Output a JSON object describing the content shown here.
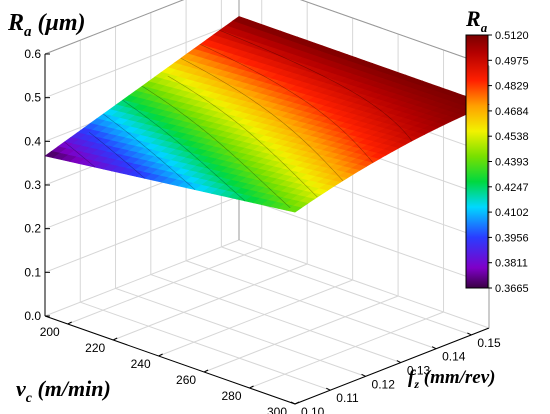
{
  "chart_data": {
    "type": "surface3d",
    "z_title": {
      "main": "R",
      "sub": "a",
      "unit": " (μm)"
    },
    "x_title": {
      "main": "v",
      "sub": "c",
      "unit": " (m/min)"
    },
    "y_title": {
      "main": "f",
      "sub": "z",
      "unit": " (mm/rev)"
    },
    "colorbar_title": {
      "main": "R",
      "sub": "a"
    },
    "x_ticks": [
      "200",
      "220",
      "240",
      "260",
      "280",
      "300"
    ],
    "y_ticks": [
      "0.10",
      "0.11",
      "0.12",
      "0.13",
      "0.14",
      "0.15"
    ],
    "z_ticks": [
      "0.0",
      "0.1",
      "0.2",
      "0.3",
      "0.4",
      "0.5",
      "0.6"
    ],
    "colorbar_ticks": [
      "0.5120",
      "0.4975",
      "0.4829",
      "0.4684",
      "0.4538",
      "0.4393",
      "0.4247",
      "0.4102",
      "0.3956",
      "0.3811",
      "0.3665"
    ],
    "x_range": [
      190,
      300
    ],
    "y_range": [
      0.1,
      0.155
    ],
    "z_range": [
      0.0,
      0.6
    ],
    "surface_corners": {
      "vc_190_fz_0_10": 0.3665,
      "vc_300_fz_0_10": 0.4393,
      "vc_190_fz_0_155": 0.512,
      "vc_300_fz_0_155": 0.512
    },
    "grid": true,
    "colorbar_position": "right"
  }
}
